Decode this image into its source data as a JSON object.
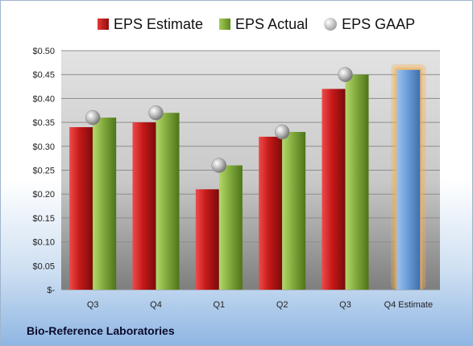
{
  "company": "Bio-Reference Laboratories",
  "legend": {
    "estimate": "EPS Estimate",
    "actual": "EPS Actual",
    "gaap": "EPS GAAP"
  },
  "colors": {
    "estimate": "#c01818",
    "actual": "#7fa83a",
    "gaap": "#b0b0b0",
    "forecast_bar": "#6c9fd8",
    "forecast_glow": "#f5b04a"
  },
  "chart_data": {
    "type": "bar",
    "categories": [
      "Q3",
      "Q4",
      "Q1",
      "Q2",
      "Q3",
      "Q4 Estimate"
    ],
    "ylim": [
      0,
      0.5
    ],
    "ytick_labels": [
      "$-",
      "$0.05",
      "$0.10",
      "$0.15",
      "$0.20",
      "$0.25",
      "$0.30",
      "$0.35",
      "$0.40",
      "$0.45",
      "$0.50"
    ],
    "series": [
      {
        "name": "EPS Estimate",
        "values": [
          0.34,
          0.35,
          0.21,
          0.32,
          0.42,
          null
        ]
      },
      {
        "name": "EPS Actual",
        "values": [
          0.36,
          0.37,
          0.26,
          0.33,
          0.45,
          null
        ]
      },
      {
        "name": "EPS GAAP",
        "values": [
          0.36,
          0.37,
          0.26,
          0.33,
          0.45,
          null
        ]
      }
    ],
    "forecast": {
      "category": "Q4 Estimate",
      "value": 0.46
    },
    "grid": true,
    "legend_position": "top"
  }
}
